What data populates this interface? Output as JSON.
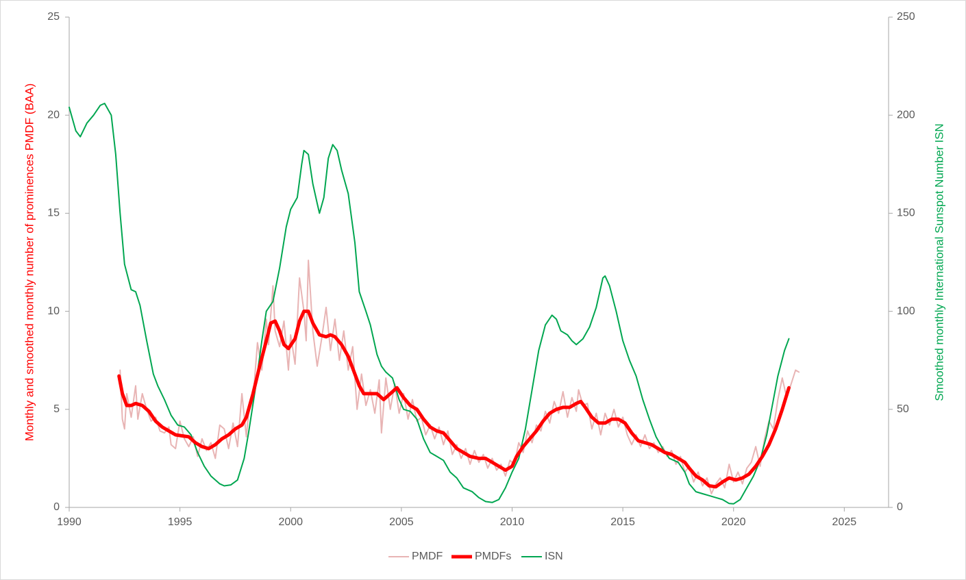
{
  "chart_data": {
    "type": "line",
    "y_label": "Monthly and smoothed monthly number of prominences PMDF (BAA)",
    "y2_label": "Smoothed monthly International Sunspot Number ISN",
    "xlim": [
      1990,
      2027
    ],
    "xticks": [
      1990,
      1995,
      2000,
      2005,
      2010,
      2015,
      2020,
      2025
    ],
    "ylim": [
      0,
      25
    ],
    "yticks": [
      0,
      5,
      10,
      15,
      20,
      25
    ],
    "y2lim": [
      0,
      250
    ],
    "y2ticks": [
      0,
      50,
      100,
      150,
      200,
      250
    ],
    "legend": "bottom",
    "series": [
      {
        "name": "PMDF",
        "color": "#e8b4b4",
        "width": 2,
        "x": [
          1992.3,
          1992.4,
          1992.5,
          1992.6,
          1992.8,
          1993.0,
          1993.1,
          1993.3,
          1993.5,
          1993.7,
          1993.9,
          1994.1,
          1994.3,
          1994.5,
          1994.6,
          1994.8,
          1995.0,
          1995.2,
          1995.4,
          1995.6,
          1995.8,
          1996.0,
          1996.2,
          1996.4,
          1996.6,
          1996.8,
          1997.0,
          1997.2,
          1997.4,
          1997.6,
          1997.8,
          1998.0,
          1998.1,
          1998.3,
          1998.5,
          1998.7,
          1998.9,
          1999.0,
          1999.2,
          1999.3,
          1999.5,
          1999.7,
          1999.9,
          2000.0,
          2000.2,
          2000.4,
          2000.6,
          2000.7,
          2000.8,
          2001.0,
          2001.2,
          2001.4,
          2001.6,
          2001.8,
          2002.0,
          2002.2,
          2002.4,
          2002.6,
          2002.8,
          2003.0,
          2003.2,
          2003.4,
          2003.6,
          2003.8,
          2004.0,
          2004.1,
          2004.3,
          2004.5,
          2004.7,
          2004.9,
          2005.1,
          2005.3,
          2005.5,
          2005.7,
          2005.9,
          2006.1,
          2006.3,
          2006.5,
          2006.7,
          2006.9,
          2007.1,
          2007.3,
          2007.5,
          2007.7,
          2007.9,
          2008.1,
          2008.3,
          2008.5,
          2008.7,
          2008.9,
          2009.1,
          2009.3,
          2009.5,
          2009.7,
          2009.9,
          2010.1,
          2010.3,
          2010.5,
          2010.7,
          2010.9,
          2011.1,
          2011.3,
          2011.5,
          2011.7,
          2011.9,
          2012.1,
          2012.3,
          2012.5,
          2012.7,
          2012.9,
          2013.0,
          2013.2,
          2013.4,
          2013.6,
          2013.8,
          2014.0,
          2014.2,
          2014.4,
          2014.6,
          2014.8,
          2015.0,
          2015.2,
          2015.4,
          2015.6,
          2015.8,
          2016.0,
          2016.2,
          2016.4,
          2016.6,
          2016.8,
          2017.0,
          2017.2,
          2017.4,
          2017.6,
          2017.8,
          2018.0,
          2018.2,
          2018.4,
          2018.6,
          2018.8,
          2019.0,
          2019.2,
          2019.4,
          2019.6,
          2019.8,
          2020.0,
          2020.2,
          2020.4,
          2020.6,
          2020.8,
          2021.0,
          2021.2,
          2021.4,
          2021.6,
          2021.8,
          2022.0,
          2022.2,
          2022.4,
          2022.6,
          2022.8,
          2022.95
        ],
        "values": [
          7.0,
          4.5,
          4.0,
          5.8,
          4.6,
          6.2,
          4.5,
          5.8,
          5.0,
          4.4,
          4.6,
          3.9,
          3.8,
          4.1,
          3.2,
          3.0,
          4.4,
          3.5,
          3.1,
          3.6,
          2.6,
          3.5,
          2.9,
          3.3,
          2.5,
          4.2,
          4.0,
          3.0,
          4.3,
          3.1,
          5.8,
          3.6,
          4.8,
          5.5,
          8.4,
          7.0,
          9.6,
          8.3,
          11.3,
          9.0,
          8.2,
          9.5,
          7.0,
          8.8,
          7.3,
          11.7,
          10.0,
          8.5,
          12.6,
          9.0,
          7.2,
          8.6,
          10.2,
          8.0,
          9.6,
          7.5,
          9.0,
          7.0,
          8.2,
          5.0,
          6.8,
          5.2,
          6.0,
          4.8,
          6.5,
          3.8,
          6.6,
          5.0,
          6.3,
          4.8,
          5.8,
          4.5,
          5.5,
          4.4,
          4.6,
          3.7,
          4.2,
          3.5,
          4.1,
          3.2,
          3.9,
          2.7,
          3.2,
          2.5,
          3.0,
          2.2,
          2.9,
          2.3,
          2.7,
          2.0,
          2.5,
          1.9,
          2.2,
          1.6,
          2.4,
          2.2,
          3.3,
          2.8,
          3.9,
          3.3,
          4.2,
          3.9,
          4.9,
          4.3,
          5.4,
          4.8,
          5.9,
          4.6,
          5.6,
          4.9,
          6.0,
          5.2,
          5.3,
          4.0,
          4.8,
          3.7,
          4.8,
          4.2,
          5.0,
          4.1,
          4.6,
          3.7,
          3.2,
          3.7,
          3.1,
          3.7,
          3.0,
          3.3,
          2.8,
          3.1,
          2.6,
          2.9,
          2.2,
          2.6,
          1.8,
          2.1,
          1.3,
          1.8,
          1.1,
          1.5,
          0.7,
          1.2,
          1.5,
          1.0,
          2.2,
          1.3,
          1.8,
          1.2,
          2.0,
          2.3,
          3.1,
          2.1,
          3.5,
          4.4,
          4.0,
          5.5,
          6.6,
          5.6,
          6.3,
          7.0,
          6.9
        ]
      },
      {
        "name": "PMDFs",
        "color": "#ff0000",
        "width": 5,
        "x": [
          1992.25,
          1992.4,
          1992.6,
          1992.8,
          1993.0,
          1993.3,
          1993.6,
          1993.9,
          1994.2,
          1994.5,
          1994.8,
          1995.1,
          1995.4,
          1995.7,
          1996.0,
          1996.3,
          1996.6,
          1996.9,
          1997.2,
          1997.5,
          1997.8,
          1998.0,
          1998.3,
          1998.6,
          1998.9,
          1999.1,
          1999.3,
          1999.5,
          1999.7,
          1999.9,
          2000.2,
          2000.4,
          2000.6,
          2000.8,
          2001.0,
          2001.3,
          2001.6,
          2001.8,
          2002.0,
          2002.3,
          2002.6,
          2002.9,
          2003.1,
          2003.3,
          2003.6,
          2003.9,
          2004.2,
          2004.4,
          2004.6,
          2004.8,
          2005.1,
          2005.4,
          2005.7,
          2006.0,
          2006.3,
          2006.6,
          2006.9,
          2007.2,
          2007.5,
          2007.8,
          2008.1,
          2008.5,
          2008.8,
          2009.1,
          2009.4,
          2009.7,
          2010.0,
          2010.2,
          2010.5,
          2010.8,
          2011.1,
          2011.4,
          2011.7,
          2012.0,
          2012.3,
          2012.6,
          2012.9,
          2013.1,
          2013.3,
          2013.6,
          2013.9,
          2014.2,
          2014.5,
          2014.8,
          2015.1,
          2015.4,
          2015.7,
          2016.0,
          2016.3,
          2016.6,
          2016.9,
          2017.2,
          2017.5,
          2017.8,
          2018.0,
          2018.3,
          2018.6,
          2018.9,
          2019.2,
          2019.5,
          2019.8,
          2020.1,
          2020.4,
          2020.7,
          2021.0,
          2021.3,
          2021.6,
          2021.9,
          2022.2,
          2022.5
        ],
        "values": [
          6.7,
          5.8,
          5.2,
          5.2,
          5.3,
          5.2,
          4.9,
          4.4,
          4.1,
          3.9,
          3.7,
          3.65,
          3.6,
          3.3,
          3.1,
          3.0,
          3.2,
          3.5,
          3.7,
          4.0,
          4.2,
          4.6,
          5.8,
          7.2,
          8.5,
          9.4,
          9.5,
          9.0,
          8.3,
          8.1,
          8.6,
          9.5,
          10.0,
          10.0,
          9.4,
          8.8,
          8.7,
          8.8,
          8.7,
          8.3,
          7.7,
          6.8,
          6.2,
          5.8,
          5.8,
          5.8,
          5.5,
          5.7,
          5.9,
          6.1,
          5.6,
          5.2,
          5.0,
          4.5,
          4.1,
          3.9,
          3.8,
          3.4,
          3.0,
          2.8,
          2.6,
          2.5,
          2.5,
          2.3,
          2.1,
          1.9,
          2.1,
          2.6,
          3.1,
          3.5,
          3.9,
          4.4,
          4.8,
          5.0,
          5.1,
          5.1,
          5.3,
          5.4,
          5.1,
          4.6,
          4.3,
          4.3,
          4.5,
          4.5,
          4.3,
          3.8,
          3.4,
          3.3,
          3.2,
          3.0,
          2.8,
          2.7,
          2.5,
          2.3,
          2.0,
          1.6,
          1.4,
          1.1,
          1.05,
          1.3,
          1.5,
          1.4,
          1.5,
          1.7,
          2.1,
          2.6,
          3.2,
          4.0,
          5.0,
          6.1
        ]
      },
      {
        "name": "ISN",
        "color": "#00a650",
        "width": 2,
        "axis": "y2",
        "x": [
          1990.0,
          1990.3,
          1990.5,
          1990.8,
          1991.1,
          1991.4,
          1991.6,
          1991.9,
          1992.1,
          1992.3,
          1992.5,
          1992.8,
          1993.0,
          1993.2,
          1993.5,
          1993.8,
          1994.0,
          1994.3,
          1994.6,
          1994.9,
          1995.2,
          1995.5,
          1995.8,
          1996.1,
          1996.4,
          1996.8,
          1997.0,
          1997.3,
          1997.6,
          1997.9,
          1998.1,
          1998.4,
          1998.7,
          1998.9,
          1999.2,
          1999.5,
          1999.8,
          2000.0,
          2000.3,
          2000.5,
          2000.6,
          2000.8,
          2001.0,
          2001.2,
          2001.3,
          2001.5,
          2001.7,
          2001.9,
          2002.1,
          2002.3,
          2002.6,
          2002.9,
          2003.1,
          2003.4,
          2003.6,
          2003.9,
          2004.1,
          2004.3,
          2004.6,
          2004.9,
          2005.1,
          2005.4,
          2005.7,
          2006.0,
          2006.3,
          2006.6,
          2006.9,
          2007.2,
          2007.5,
          2007.8,
          2008.2,
          2008.5,
          2008.8,
          2009.1,
          2009.4,
          2009.7,
          2010.0,
          2010.3,
          2010.6,
          2010.9,
          2011.2,
          2011.5,
          2011.8,
          2012.0,
          2012.2,
          2012.5,
          2012.7,
          2012.9,
          2013.2,
          2013.5,
          2013.8,
          2014.1,
          2014.2,
          2014.4,
          2014.7,
          2015.0,
          2015.3,
          2015.6,
          2015.9,
          2016.2,
          2016.5,
          2016.8,
          2017.1,
          2017.5,
          2017.8,
          2018.0,
          2018.3,
          2018.6,
          2018.9,
          2019.2,
          2019.5,
          2019.8,
          2020.0,
          2020.3,
          2020.6,
          2020.9,
          2021.2,
          2021.5,
          2021.8,
          2022.0,
          2022.3,
          2022.5
        ],
        "values": [
          204,
          192,
          189,
          196,
          200,
          205,
          206,
          200,
          180,
          150,
          124,
          111,
          110,
          103,
          85,
          68,
          62,
          55,
          47,
          42,
          41,
          37,
          28,
          21,
          16,
          12,
          11,
          11.5,
          14,
          25,
          38,
          60,
          85,
          100,
          105,
          122,
          143,
          152,
          158,
          175,
          182,
          180,
          165,
          155,
          150,
          158,
          178,
          185,
          182,
          172,
          160,
          135,
          110,
          100,
          93,
          78,
          72,
          69,
          66,
          55,
          50,
          49,
          45,
          35,
          28,
          26,
          24,
          18,
          15,
          10,
          8,
          5,
          3,
          2.5,
          4,
          10,
          18,
          25,
          40,
          60,
          80,
          93,
          98,
          96,
          90,
          88,
          85,
          83,
          86,
          92,
          102,
          117,
          118,
          113,
          100,
          85,
          75,
          67,
          55,
          45,
          36,
          30,
          25,
          23,
          18,
          12,
          8,
          7,
          6,
          5,
          4,
          2,
          1.8,
          4,
          10,
          16,
          24,
          37,
          55,
          67,
          80,
          86
        ]
      }
    ]
  }
}
